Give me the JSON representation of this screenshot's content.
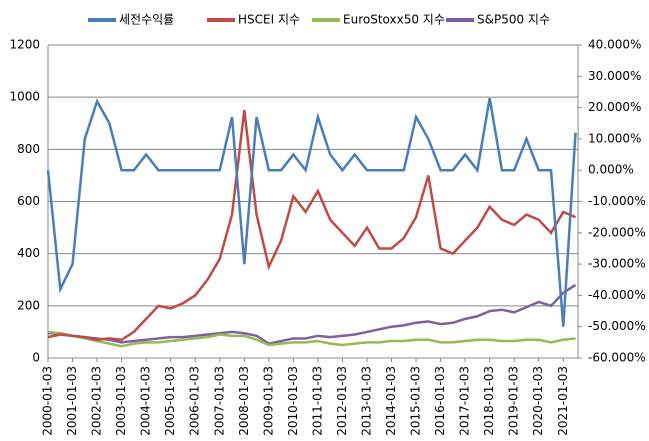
{
  "chart_data": {
    "type": "line",
    "x": [
      2000,
      2000.5,
      2001,
      2001.5,
      2002,
      2002.5,
      2003,
      2003.5,
      2004,
      2004.5,
      2005,
      2005.5,
      2006,
      2006.5,
      2007,
      2007.5,
      2008,
      2008.5,
      2009,
      2009.5,
      2010,
      2010.5,
      2011,
      2011.5,
      2012,
      2012.5,
      2013,
      2013.5,
      2014,
      2014.5,
      2015,
      2015.5,
      2016,
      2016.5,
      2017,
      2017.5,
      2018,
      2018.5,
      2019,
      2019.5,
      2020,
      2020.5,
      2021,
      2021.5
    ],
    "xlim": [
      2000,
      2021.6
    ],
    "xticks": [
      {
        "value": 2000,
        "label": "2000-01-03"
      },
      {
        "value": 2001,
        "label": "2001-01-03"
      },
      {
        "value": 2002,
        "label": "2002-01-03"
      },
      {
        "value": 2003,
        "label": "2003-01-03"
      },
      {
        "value": 2004,
        "label": "2004-01-03"
      },
      {
        "value": 2005,
        "label": "2005-01-03"
      },
      {
        "value": 2006,
        "label": "2006-01-03"
      },
      {
        "value": 2007,
        "label": "2007-01-03"
      },
      {
        "value": 2008,
        "label": "2008-01-03"
      },
      {
        "value": 2009,
        "label": "2009-01-03"
      },
      {
        "value": 2010,
        "label": "2010-01-03"
      },
      {
        "value": 2011,
        "label": "2011-01-03"
      },
      {
        "value": 2012,
        "label": "2012-01-03"
      },
      {
        "value": 2013,
        "label": "2013-01-03"
      },
      {
        "value": 2014,
        "label": "2014-01-03"
      },
      {
        "value": 2015,
        "label": "2015-01-03"
      },
      {
        "value": 2016,
        "label": "2016-01-03"
      },
      {
        "value": 2017,
        "label": "2017-01-03"
      },
      {
        "value": 2018,
        "label": "2018-01-03"
      },
      {
        "value": 2019,
        "label": "2019-01-03"
      },
      {
        "value": 2020,
        "label": "2020-01-03"
      },
      {
        "value": 2021,
        "label": "2021-01-03"
      }
    ],
    "ylim": [
      0,
      1200
    ],
    "yticks": [
      0,
      200,
      400,
      600,
      800,
      1000,
      1200
    ],
    "y2lim": [
      -60,
      40
    ],
    "y2ticks": [
      {
        "value": 40,
        "label": "40.000%"
      },
      {
        "value": 30,
        "label": "30.000%"
      },
      {
        "value": 20,
        "label": "20.000%"
      },
      {
        "value": 10,
        "label": "10.000%"
      },
      {
        "value": 0,
        "label": "0.000%"
      },
      {
        "value": -10,
        "label": "-10.000%"
      },
      {
        "value": -20,
        "label": "-20.000%"
      },
      {
        "value": -30,
        "label": "-30.000%"
      },
      {
        "value": -40,
        "label": "-40.000%"
      },
      {
        "value": -50,
        "label": "-50.000%"
      },
      {
        "value": -60,
        "label": "-60.000%"
      }
    ],
    "grid": true,
    "legend": "top",
    "series": [
      {
        "name": "세전수익률",
        "color": "#4a7ebb",
        "axis": "y2",
        "values": [
          0,
          -38,
          -30,
          10,
          22,
          15,
          0,
          0,
          5,
          0,
          0,
          0,
          0,
          0,
          0,
          17,
          -30,
          17,
          0,
          0,
          5,
          0,
          17,
          5,
          0,
          5,
          0,
          0,
          0,
          0,
          17,
          10,
          0,
          0,
          5,
          0,
          23,
          0,
          0,
          10,
          0,
          0,
          -50,
          12
        ]
      },
      {
        "name": "HSCEI 지수",
        "color": "#be4b48",
        "values": [
          80,
          90,
          85,
          80,
          70,
          75,
          70,
          100,
          150,
          200,
          190,
          210,
          240,
          300,
          380,
          550,
          950,
          550,
          350,
          450,
          620,
          560,
          640,
          530,
          480,
          430,
          500,
          420,
          420,
          460,
          540,
          700,
          420,
          400,
          450,
          500,
          580,
          530,
          510,
          550,
          530,
          480,
          560,
          540
        ]
      },
      {
        "name": "EuroStoxx50 지수",
        "color": "#98b954",
        "values": [
          100,
          95,
          85,
          75,
          65,
          55,
          45,
          55,
          60,
          60,
          65,
          70,
          75,
          80,
          90,
          85,
          85,
          70,
          50,
          55,
          60,
          60,
          65,
          55,
          50,
          55,
          60,
          60,
          65,
          65,
          70,
          70,
          60,
          60,
          65,
          70,
          70,
          65,
          65,
          70,
          70,
          60,
          70,
          75
        ]
      },
      {
        "name": "S&P500 지수",
        "color": "#7d60a0",
        "values": [
          95,
          95,
          85,
          80,
          75,
          70,
          60,
          65,
          70,
          75,
          80,
          80,
          85,
          90,
          95,
          100,
          95,
          85,
          55,
          65,
          75,
          75,
          85,
          80,
          85,
          90,
          100,
          110,
          120,
          125,
          135,
          140,
          130,
          135,
          150,
          160,
          180,
          185,
          175,
          195,
          215,
          200,
          250,
          280
        ]
      }
    ]
  }
}
